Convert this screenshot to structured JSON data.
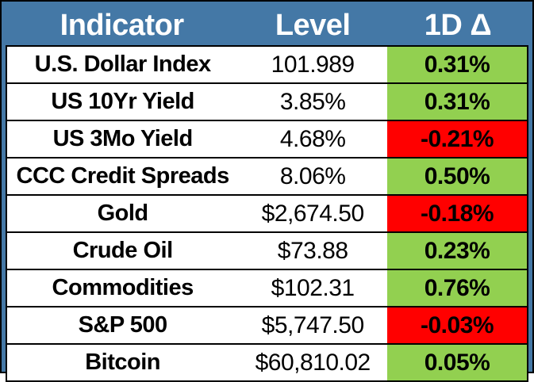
{
  "colors": {
    "header_bg": "#4478A6",
    "header_text": "#FFFFFF",
    "frame_border": "#000000",
    "gridline": "#000000",
    "cell_bg": "#FFFFFF",
    "body_text": "#000000",
    "positive_bg": "#92D050",
    "negative_bg": "#FF0000"
  },
  "chart_data": {
    "type": "table",
    "columns": [
      "Indicator",
      "Level",
      "1D Δ"
    ],
    "rows": [
      {
        "indicator": "U.S. Dollar Index",
        "level": "101.989",
        "delta": "0.31%",
        "delta_direction": "positive"
      },
      {
        "indicator": "US 10Yr Yield",
        "level": "3.85%",
        "delta": "0.31%",
        "delta_direction": "positive"
      },
      {
        "indicator": "US 3Mo Yield",
        "level": "4.68%",
        "delta": "-0.21%",
        "delta_direction": "negative"
      },
      {
        "indicator": "CCC Credit Spreads",
        "level": "8.06%",
        "delta": "0.50%",
        "delta_direction": "positive"
      },
      {
        "indicator": "Gold",
        "level": "$2,674.50",
        "delta": "-0.18%",
        "delta_direction": "negative"
      },
      {
        "indicator": "Crude Oil",
        "level": "$73.88",
        "delta": "0.23%",
        "delta_direction": "positive"
      },
      {
        "indicator": "Commodities",
        "level": "$102.31",
        "delta": "0.76%",
        "delta_direction": "positive"
      },
      {
        "indicator": "S&P 500",
        "level": "$5,747.50",
        "delta": "-0.03%",
        "delta_direction": "negative"
      },
      {
        "indicator": "Bitcoin",
        "level": "$60,810.02",
        "delta": "0.05%",
        "delta_direction": "positive"
      }
    ]
  }
}
